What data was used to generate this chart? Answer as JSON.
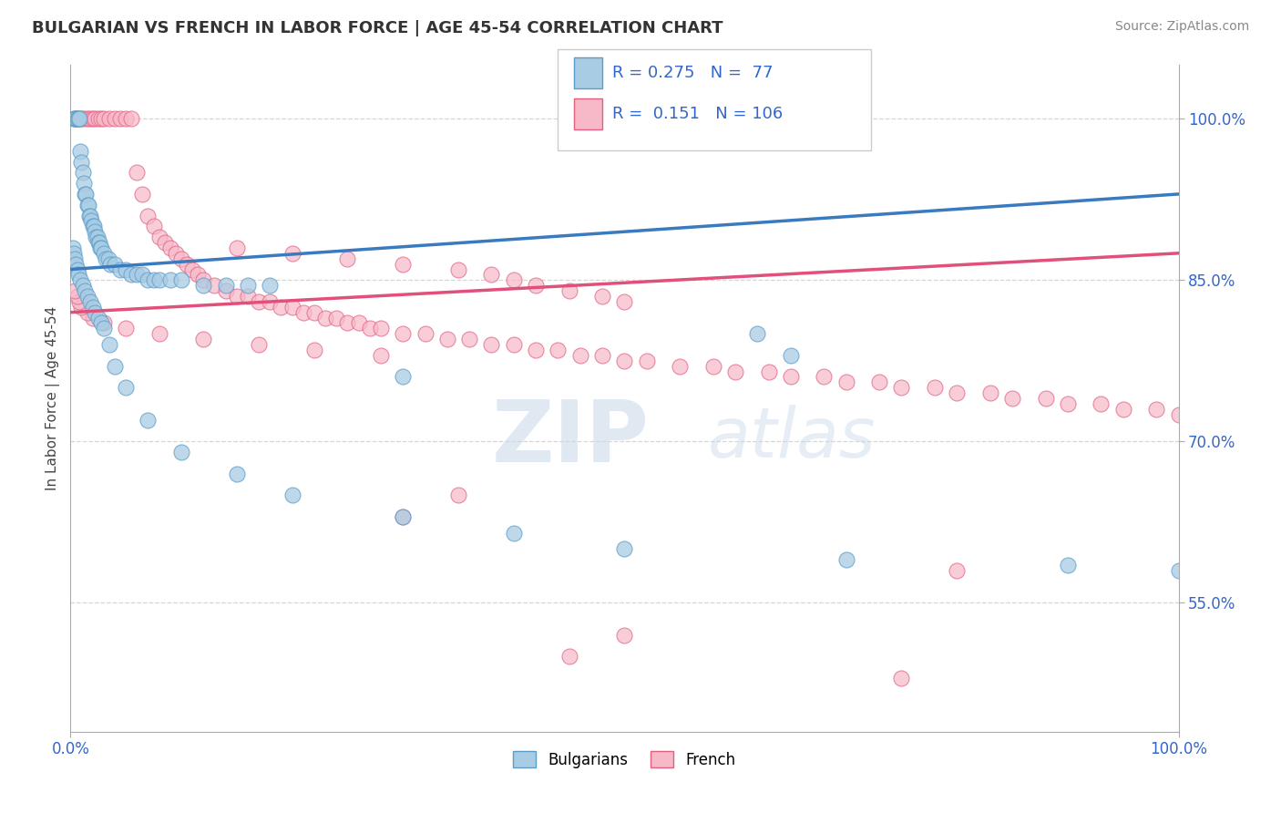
{
  "title": "BULGARIAN VS FRENCH IN LABOR FORCE | AGE 45-54 CORRELATION CHART",
  "source_text": "Source: ZipAtlas.com",
  "ylabel": "In Labor Force | Age 45-54",
  "legend_R_bulgarian": "0.275",
  "legend_N_bulgarian": "77",
  "legend_R_french": "0.151",
  "legend_N_french": "106",
  "bulgarian_color": "#a8cce4",
  "bulgarian_edge": "#5b9dc9",
  "french_color": "#f7b8c8",
  "french_edge": "#e06080",
  "trend_bulgarian_color": "#3a7abf",
  "trend_french_color": "#e0507a",
  "background_color": "#ffffff",
  "grid_color": "#cccccc",
  "xlim": [
    0.0,
    100.0
  ],
  "ylim": [
    43.0,
    105.0
  ],
  "yticks": [
    55.0,
    70.0,
    85.0,
    100.0
  ],
  "ytick_labels": [
    "55.0%",
    "70.0%",
    "85.0%",
    "100.0%"
  ],
  "bulg_trend": [
    86.0,
    93.0
  ],
  "french_trend": [
    82.0,
    87.5
  ],
  "bulg_x": [
    0.3,
    0.4,
    0.5,
    0.6,
    0.7,
    0.8,
    0.9,
    1.0,
    1.1,
    1.2,
    1.3,
    1.4,
    1.5,
    1.6,
    1.7,
    1.8,
    1.9,
    2.0,
    2.1,
    2.2,
    2.3,
    2.4,
    2.5,
    2.6,
    2.7,
    2.8,
    3.0,
    3.2,
    3.4,
    3.6,
    4.0,
    4.5,
    5.0,
    5.5,
    6.0,
    6.5,
    7.0,
    7.5,
    8.0,
    9.0,
    10.0,
    12.0,
    14.0,
    16.0,
    18.0,
    0.2,
    0.3,
    0.4,
    0.5,
    0.6,
    0.7,
    0.9,
    1.1,
    1.3,
    1.5,
    1.8,
    2.0,
    2.2,
    2.5,
    2.8,
    3.0,
    3.5,
    4.0,
    5.0,
    7.0,
    10.0,
    15.0,
    20.0,
    30.0,
    40.0,
    50.0,
    70.0,
    90.0,
    100.0,
    30.0,
    62.0,
    65.0
  ],
  "bulg_y": [
    100.0,
    100.0,
    100.0,
    100.0,
    100.0,
    100.0,
    97.0,
    96.0,
    95.0,
    94.0,
    93.0,
    93.0,
    92.0,
    92.0,
    91.0,
    91.0,
    90.5,
    90.0,
    90.0,
    89.5,
    89.0,
    89.0,
    88.5,
    88.5,
    88.0,
    88.0,
    87.5,
    87.0,
    87.0,
    86.5,
    86.5,
    86.0,
    86.0,
    85.5,
    85.5,
    85.5,
    85.0,
    85.0,
    85.0,
    85.0,
    85.0,
    84.5,
    84.5,
    84.5,
    84.5,
    88.0,
    87.5,
    87.0,
    86.5,
    86.0,
    85.5,
    85.0,
    84.5,
    84.0,
    83.5,
    83.0,
    82.5,
    82.0,
    81.5,
    81.0,
    80.5,
    79.0,
    77.0,
    75.0,
    72.0,
    69.0,
    67.0,
    65.0,
    63.0,
    61.5,
    60.0,
    59.0,
    58.5,
    58.0,
    76.0,
    80.0,
    78.0
  ],
  "french_x": [
    0.5,
    0.8,
    1.0,
    1.2,
    1.5,
    1.8,
    2.0,
    2.2,
    2.5,
    2.8,
    3.0,
    3.5,
    4.0,
    4.5,
    5.0,
    5.5,
    6.0,
    6.5,
    7.0,
    7.5,
    8.0,
    8.5,
    9.0,
    9.5,
    10.0,
    10.5,
    11.0,
    11.5,
    12.0,
    13.0,
    14.0,
    15.0,
    16.0,
    17.0,
    18.0,
    19.0,
    20.0,
    21.0,
    22.0,
    23.0,
    24.0,
    25.0,
    26.0,
    27.0,
    28.0,
    30.0,
    32.0,
    34.0,
    36.0,
    38.0,
    40.0,
    42.0,
    44.0,
    46.0,
    48.0,
    50.0,
    52.0,
    55.0,
    58.0,
    60.0,
    63.0,
    65.0,
    68.0,
    70.0,
    73.0,
    75.0,
    78.0,
    80.0,
    83.0,
    85.0,
    88.0,
    90.0,
    93.0,
    95.0,
    98.0,
    100.0,
    15.0,
    20.0,
    25.0,
    30.0,
    35.0,
    38.0,
    40.0,
    42.0,
    45.0,
    48.0,
    50.0,
    28.0,
    22.0,
    17.0,
    12.0,
    8.0,
    5.0,
    3.0,
    2.0,
    1.5,
    1.0,
    0.8,
    0.6,
    0.4,
    35.0,
    30.0,
    80.0,
    50.0,
    45.0,
    75.0
  ],
  "french_y": [
    100.0,
    100.0,
    100.0,
    100.0,
    100.0,
    100.0,
    100.0,
    100.0,
    100.0,
    100.0,
    100.0,
    100.0,
    100.0,
    100.0,
    100.0,
    100.0,
    95.0,
    93.0,
    91.0,
    90.0,
    89.0,
    88.5,
    88.0,
    87.5,
    87.0,
    86.5,
    86.0,
    85.5,
    85.0,
    84.5,
    84.0,
    83.5,
    83.5,
    83.0,
    83.0,
    82.5,
    82.5,
    82.0,
    82.0,
    81.5,
    81.5,
    81.0,
    81.0,
    80.5,
    80.5,
    80.0,
    80.0,
    79.5,
    79.5,
    79.0,
    79.0,
    78.5,
    78.5,
    78.0,
    78.0,
    77.5,
    77.5,
    77.0,
    77.0,
    76.5,
    76.5,
    76.0,
    76.0,
    75.5,
    75.5,
    75.0,
    75.0,
    74.5,
    74.5,
    74.0,
    74.0,
    73.5,
    73.5,
    73.0,
    73.0,
    72.5,
    88.0,
    87.5,
    87.0,
    86.5,
    86.0,
    85.5,
    85.0,
    84.5,
    84.0,
    83.5,
    83.0,
    78.0,
    78.5,
    79.0,
    79.5,
    80.0,
    80.5,
    81.0,
    81.5,
    82.0,
    82.5,
    83.0,
    83.5,
    84.0,
    65.0,
    63.0,
    58.0,
    52.0,
    50.0,
    48.0
  ]
}
